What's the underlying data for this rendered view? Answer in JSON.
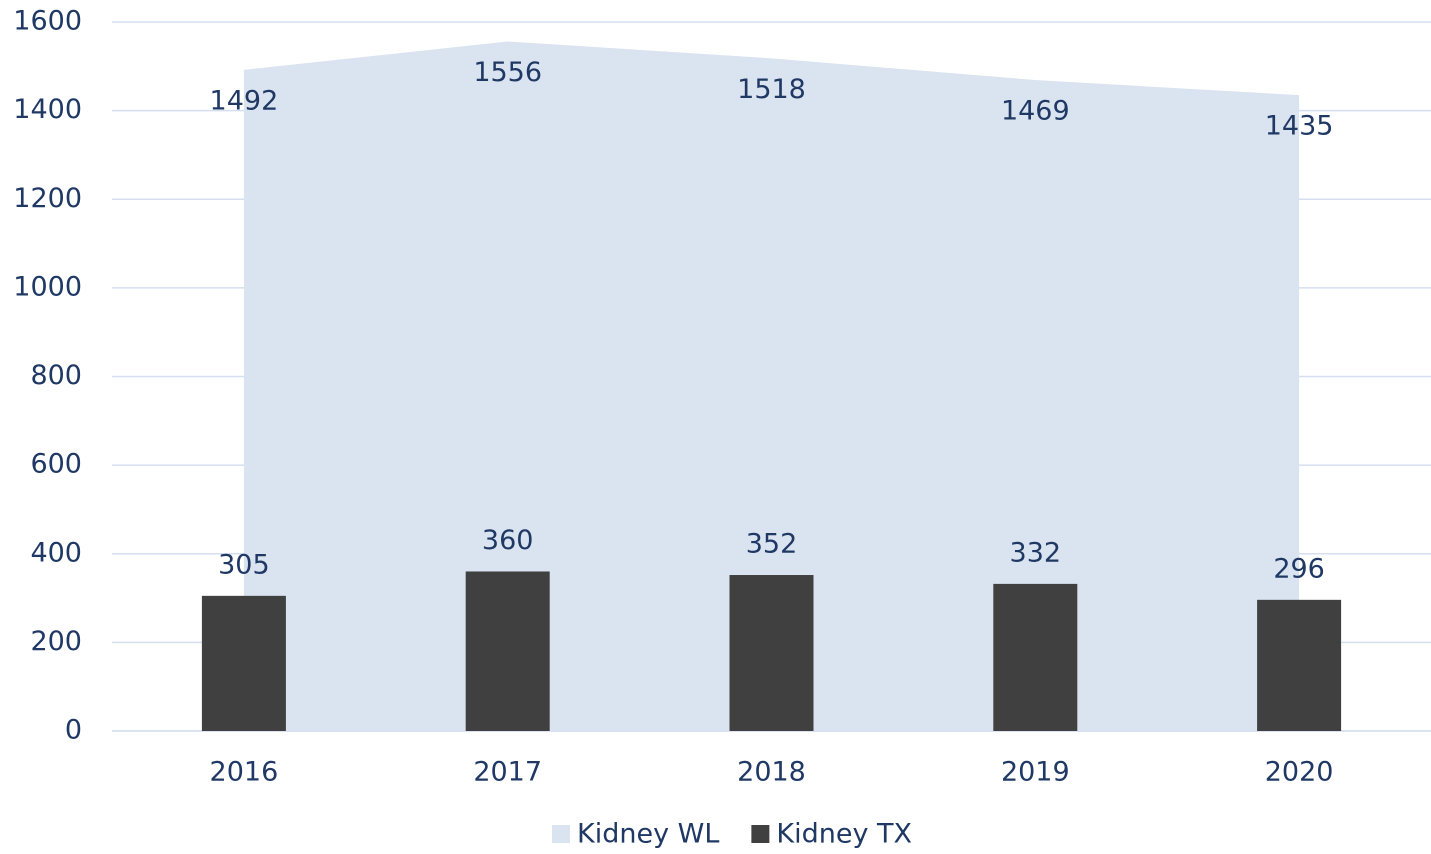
{
  "chart_data": {
    "type": "bar",
    "categories": [
      "2016",
      "2017",
      "2018",
      "2019",
      "2020"
    ],
    "series": [
      {
        "name": "Kidney WL",
        "type": "area",
        "color": "#dae3f0",
        "values": [
          1492,
          1556,
          1518,
          1469,
          1435
        ]
      },
      {
        "name": "Kidney TX",
        "type": "bar",
        "color": "#404040",
        "values": [
          305,
          360,
          352,
          332,
          296
        ]
      }
    ],
    "ylim": [
      0,
      1600
    ],
    "yticks": [
      0,
      200,
      400,
      600,
      800,
      1000,
      1200,
      1400,
      1600
    ],
    "grid": true,
    "legend": "bottom"
  }
}
